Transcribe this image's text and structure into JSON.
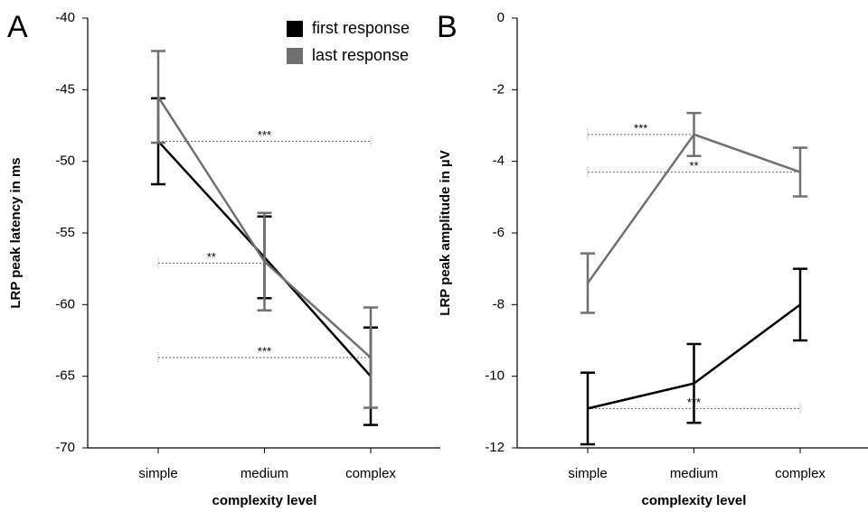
{
  "chart_data": [
    {
      "type": "line",
      "panel_label": "A",
      "ylabel": "LRP peak latency in ms",
      "xlabel": "complexity level",
      "categories": [
        "simple",
        "medium",
        "complex"
      ],
      "ylim": [
        -70,
        -40
      ],
      "yticks": [
        -40,
        -45,
        -50,
        -55,
        -60,
        -65,
        -70
      ],
      "legend": true,
      "legend_loc": "upper right",
      "series": [
        {
          "name": "first response",
          "color": "#000000",
          "values": [
            -48.6,
            -56.7,
            -65.0
          ],
          "errors": [
            3.0,
            2.85,
            3.4
          ]
        },
        {
          "name": "last response",
          "color": "#707070",
          "values": [
            -45.5,
            -57.0,
            -63.7
          ],
          "errors": [
            3.2,
            3.4,
            3.5
          ]
        }
      ],
      "annotations": [
        {
          "text": "***",
          "y": -48.6,
          "from": 0,
          "to": 2
        },
        {
          "text": "**",
          "y": -57.1,
          "from": 0,
          "to": 1
        },
        {
          "text": "***",
          "y": -63.7,
          "from": 0,
          "to": 2
        }
      ]
    },
    {
      "type": "line",
      "panel_label": "B",
      "ylabel": "LRP peak amplitude in µV",
      "xlabel": "complexity level",
      "categories": [
        "simple",
        "medium",
        "complex"
      ],
      "ylim": [
        -12,
        0
      ],
      "yticks": [
        0,
        -2,
        -4,
        -6,
        -8,
        -10,
        -12
      ],
      "legend": false,
      "series": [
        {
          "name": "first response",
          "color": "#000000",
          "values": [
            -10.9,
            -10.2,
            -8.0
          ],
          "errors": [
            1.0,
            1.1,
            1.0
          ]
        },
        {
          "name": "last response",
          "color": "#707070",
          "values": [
            -7.4,
            -3.25,
            -4.3
          ],
          "errors": [
            0.83,
            0.6,
            0.68
          ]
        }
      ],
      "annotations": [
        {
          "text": "***",
          "y": -3.25,
          "from": 0,
          "to": 1
        },
        {
          "text": "**",
          "y": -4.3,
          "from": 0,
          "to": 2
        },
        {
          "text": "***",
          "y": -10.9,
          "from": 0,
          "to": 2
        }
      ]
    }
  ]
}
